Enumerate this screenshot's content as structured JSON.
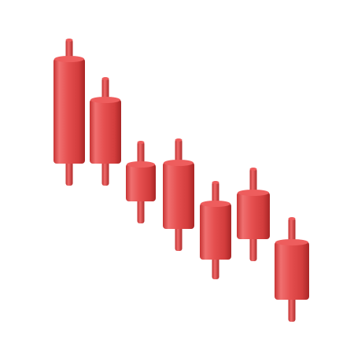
{
  "illustration": {
    "subject": "candlestick-chart-icon",
    "candle_count": 7,
    "colors": {
      "background": "#ffffff",
      "candle_light": "#f07070",
      "candle_mid": "#e54747",
      "candle_dark": "#b52a2a",
      "candle_cap": "#ee5d5d"
    }
  }
}
